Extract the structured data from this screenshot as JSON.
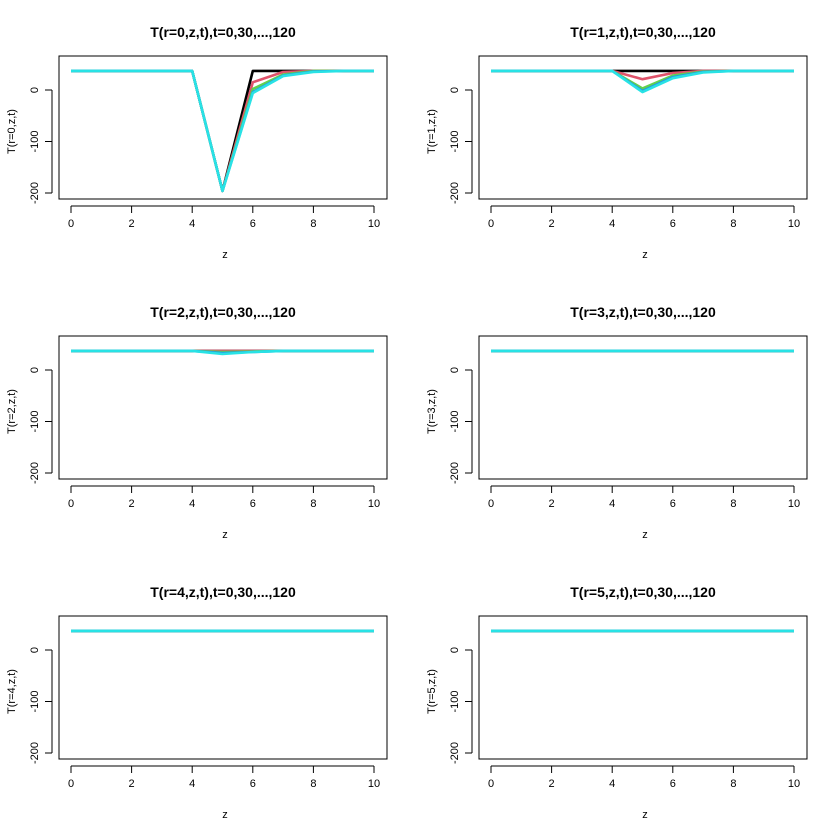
{
  "chart_data": [
    {
      "type": "line",
      "title": "T(r=0,z,t),t=0,30,...,120",
      "xlabel": "z",
      "ylabel": "T(r=0,z,t)",
      "xlim": [
        0,
        10
      ],
      "ylim": [
        -200,
        40
      ],
      "x": [
        0,
        1,
        2,
        3,
        4,
        5,
        6,
        7,
        8,
        9,
        10
      ],
      "xticks": [
        "0",
        "2",
        "4",
        "6",
        "8",
        "10"
      ],
      "yticks": [
        "0",
        "-100",
        "-200"
      ],
      "series": [
        {
          "color": "#000000",
          "values": [
            37,
            37,
            37,
            37,
            37,
            -196,
            37,
            37,
            37,
            37,
            37
          ]
        },
        {
          "color": "#DF536B",
          "values": [
            37,
            37,
            37,
            37,
            37,
            -196,
            15,
            35,
            37,
            37,
            37
          ]
        },
        {
          "color": "#61D04F",
          "values": [
            37,
            37,
            37,
            37,
            37,
            -196,
            2,
            30,
            37,
            37,
            37
          ]
        },
        {
          "color": "#2297E6",
          "values": [
            37,
            37,
            37,
            37,
            37,
            -196,
            -4,
            28,
            36,
            37,
            37
          ]
        },
        {
          "color": "#28E2E5",
          "values": [
            37,
            37,
            37,
            37,
            37,
            -196,
            -6,
            27,
            35,
            37,
            37
          ]
        }
      ]
    },
    {
      "type": "line",
      "title": "T(r=1,z,t),t=0,30,...,120",
      "xlabel": "z",
      "ylabel": "T(r=1,z,t)",
      "xlim": [
        0,
        10
      ],
      "ylim": [
        -200,
        40
      ],
      "x": [
        0,
        1,
        2,
        3,
        4,
        5,
        6,
        7,
        8,
        9,
        10
      ],
      "xticks": [
        "0",
        "2",
        "4",
        "6",
        "8",
        "10"
      ],
      "yticks": [
        "0",
        "-100",
        "-200"
      ],
      "series": [
        {
          "color": "#000000",
          "values": [
            37,
            37,
            37,
            37,
            37,
            37,
            37,
            37,
            37,
            37,
            37
          ]
        },
        {
          "color": "#DF536B",
          "values": [
            37,
            37,
            37,
            37,
            37,
            21,
            33,
            37,
            37,
            37,
            37
          ]
        },
        {
          "color": "#61D04F",
          "values": [
            37,
            37,
            37,
            37,
            37,
            3,
            28,
            36,
            37,
            37,
            37
          ]
        },
        {
          "color": "#2297E6",
          "values": [
            37,
            37,
            37,
            37,
            37,
            -2,
            25,
            35,
            37,
            37,
            37
          ]
        },
        {
          "color": "#28E2E5",
          "values": [
            37,
            37,
            37,
            37,
            37,
            -4,
            23,
            34,
            37,
            37,
            37
          ]
        }
      ]
    },
    {
      "type": "line",
      "title": "T(r=2,z,t),t=0,30,...,120",
      "xlabel": "z",
      "ylabel": "T(r=2,z,t)",
      "xlim": [
        0,
        10
      ],
      "ylim": [
        -200,
        40
      ],
      "x": [
        0,
        1,
        2,
        3,
        4,
        5,
        6,
        7,
        8,
        9,
        10
      ],
      "xticks": [
        "0",
        "2",
        "4",
        "6",
        "8",
        "10"
      ],
      "yticks": [
        "0",
        "-100",
        "-200"
      ],
      "series": [
        {
          "color": "#000000",
          "values": [
            37,
            37,
            37,
            37,
            37,
            37,
            37,
            37,
            37,
            37,
            37
          ]
        },
        {
          "color": "#DF536B",
          "values": [
            37,
            37,
            37,
            37,
            37,
            37,
            37,
            37,
            37,
            37,
            37
          ]
        },
        {
          "color": "#61D04F",
          "values": [
            37,
            37,
            37,
            37,
            37,
            35,
            36,
            37,
            37,
            37,
            37
          ]
        },
        {
          "color": "#2297E6",
          "values": [
            37,
            37,
            37,
            37,
            37,
            33,
            35,
            37,
            37,
            37,
            37
          ]
        },
        {
          "color": "#28E2E5",
          "values": [
            37,
            37,
            37,
            37,
            37,
            31,
            35,
            37,
            37,
            37,
            37
          ]
        }
      ]
    },
    {
      "type": "line",
      "title": "T(r=3,z,t),t=0,30,...,120",
      "xlabel": "z",
      "ylabel": "T(r=3,z,t)",
      "xlim": [
        0,
        10
      ],
      "ylim": [
        -200,
        40
      ],
      "x": [
        0,
        1,
        2,
        3,
        4,
        5,
        6,
        7,
        8,
        9,
        10
      ],
      "xticks": [
        "0",
        "2",
        "4",
        "6",
        "8",
        "10"
      ],
      "yticks": [
        "0",
        "-100",
        "-200"
      ],
      "series": [
        {
          "color": "#000000",
          "values": [
            37,
            37,
            37,
            37,
            37,
            37,
            37,
            37,
            37,
            37,
            37
          ]
        },
        {
          "color": "#DF536B",
          "values": [
            37,
            37,
            37,
            37,
            37,
            37,
            37,
            37,
            37,
            37,
            37
          ]
        },
        {
          "color": "#61D04F",
          "values": [
            37,
            37,
            37,
            37,
            37,
            37,
            37,
            37,
            37,
            37,
            37
          ]
        },
        {
          "color": "#2297E6",
          "values": [
            37,
            37,
            37,
            37,
            37,
            37,
            37,
            37,
            37,
            37,
            37
          ]
        },
        {
          "color": "#28E2E5",
          "values": [
            37,
            37,
            37,
            37,
            37,
            37,
            37,
            37,
            37,
            37,
            37
          ]
        }
      ]
    },
    {
      "type": "line",
      "title": "T(r=4,z,t),t=0,30,...,120",
      "xlabel": "z",
      "ylabel": "T(r=4,z,t)",
      "xlim": [
        0,
        10
      ],
      "ylim": [
        -200,
        40
      ],
      "x": [
        0,
        1,
        2,
        3,
        4,
        5,
        6,
        7,
        8,
        9,
        10
      ],
      "xticks": [
        "0",
        "2",
        "4",
        "6",
        "8",
        "10"
      ],
      "yticks": [
        "0",
        "-100",
        "-200"
      ],
      "series": [
        {
          "color": "#000000",
          "values": [
            37,
            37,
            37,
            37,
            37,
            37,
            37,
            37,
            37,
            37,
            37
          ]
        },
        {
          "color": "#DF536B",
          "values": [
            37,
            37,
            37,
            37,
            37,
            37,
            37,
            37,
            37,
            37,
            37
          ]
        },
        {
          "color": "#61D04F",
          "values": [
            37,
            37,
            37,
            37,
            37,
            37,
            37,
            37,
            37,
            37,
            37
          ]
        },
        {
          "color": "#2297E6",
          "values": [
            37,
            37,
            37,
            37,
            37,
            37,
            37,
            37,
            37,
            37,
            37
          ]
        },
        {
          "color": "#28E2E5",
          "values": [
            37,
            37,
            37,
            37,
            37,
            37,
            37,
            37,
            37,
            37,
            37
          ]
        }
      ]
    },
    {
      "type": "line",
      "title": "T(r=5,z,t),t=0,30,...,120",
      "xlabel": "z",
      "ylabel": "T(r=5,z,t)",
      "xlim": [
        0,
        10
      ],
      "ylim": [
        -200,
        40
      ],
      "x": [
        0,
        1,
        2,
        3,
        4,
        5,
        6,
        7,
        8,
        9,
        10
      ],
      "xticks": [
        "0",
        "2",
        "4",
        "6",
        "8",
        "10"
      ],
      "yticks": [
        "0",
        "-100",
        "-200"
      ],
      "series": [
        {
          "color": "#000000",
          "values": [
            37,
            37,
            37,
            37,
            37,
            37,
            37,
            37,
            37,
            37,
            37
          ]
        },
        {
          "color": "#DF536B",
          "values": [
            37,
            37,
            37,
            37,
            37,
            37,
            37,
            37,
            37,
            37,
            37
          ]
        },
        {
          "color": "#61D04F",
          "values": [
            37,
            37,
            37,
            37,
            37,
            37,
            37,
            37,
            37,
            37,
            37
          ]
        },
        {
          "color": "#2297E6",
          "values": [
            37,
            37,
            37,
            37,
            37,
            37,
            37,
            37,
            37,
            37,
            37
          ]
        },
        {
          "color": "#28E2E5",
          "values": [
            37,
            37,
            37,
            37,
            37,
            37,
            37,
            37,
            37,
            37,
            37
          ]
        }
      ]
    }
  ]
}
